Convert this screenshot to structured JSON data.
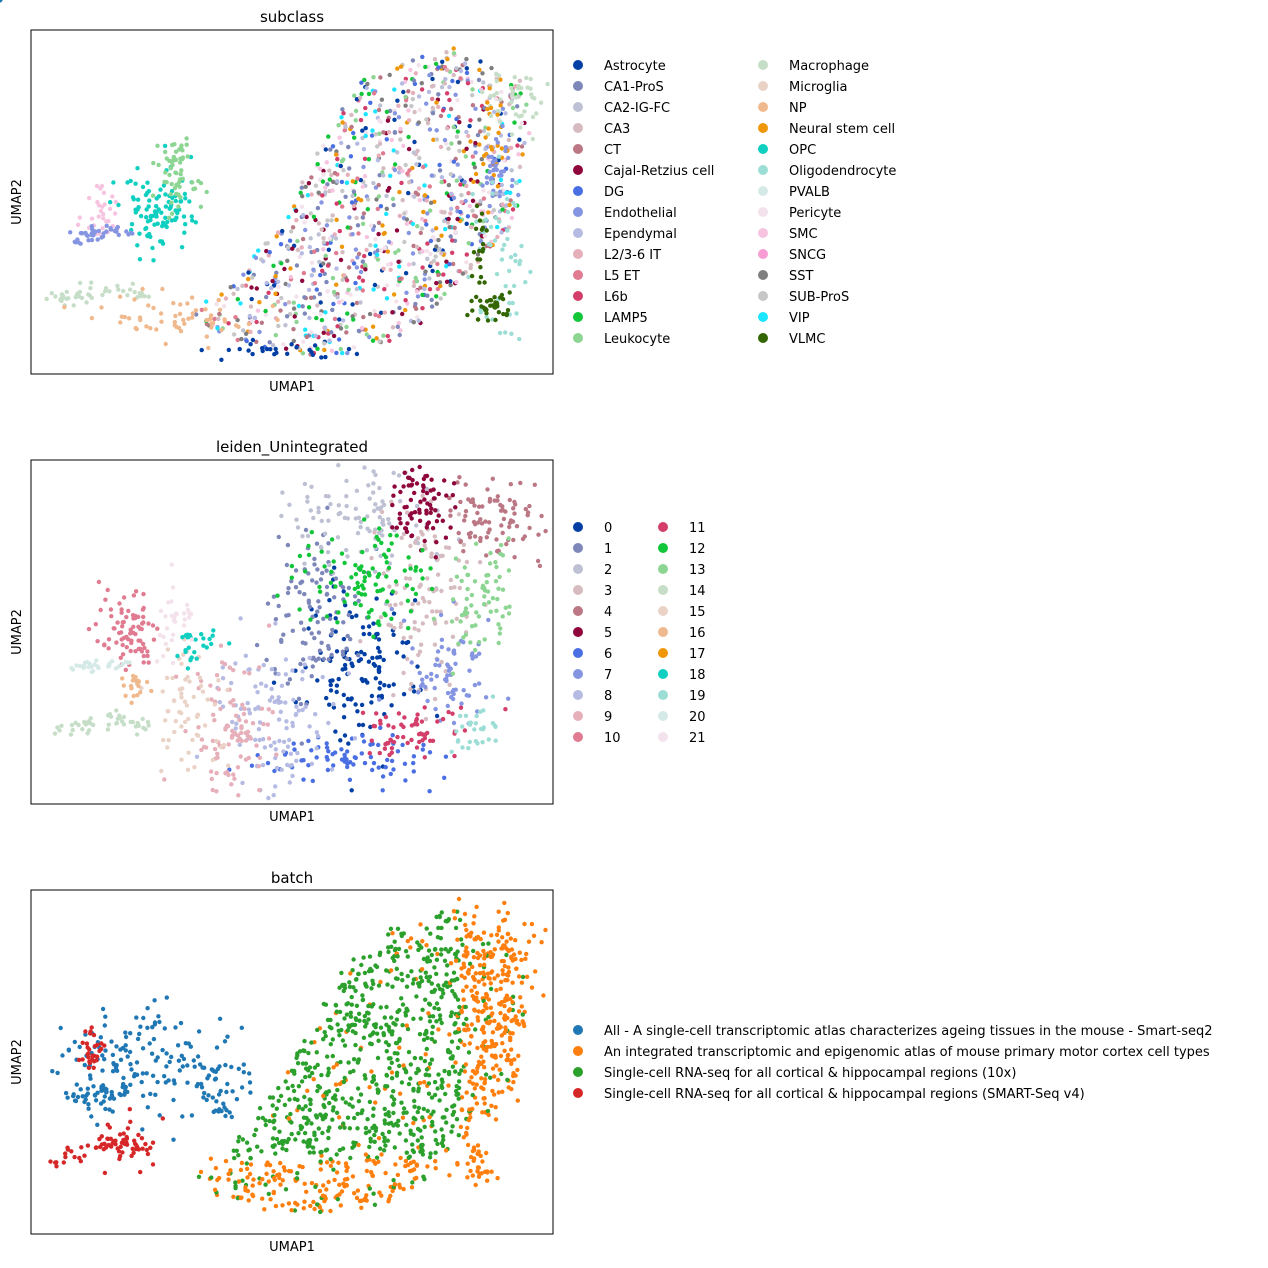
{
  "chart_data": [
    {
      "type": "scatter",
      "title": "subclass",
      "xlabel": "UMAP1",
      "ylabel": "UMAP2",
      "grid": false,
      "legend_position": "right",
      "legend_columns": 2,
      "categories": [
        {
          "label": "Astrocyte",
          "color": "#023fa5"
        },
        {
          "label": "CA1-ProS",
          "color": "#7d87b9"
        },
        {
          "label": "CA2-IG-FC",
          "color": "#bec1d4"
        },
        {
          "label": "CA3",
          "color": "#d6bcc0"
        },
        {
          "label": "CT",
          "color": "#bb7784"
        },
        {
          "label": "Cajal-Retzius cell",
          "color": "#8e063b"
        },
        {
          "label": "DG",
          "color": "#4a6fe3"
        },
        {
          "label": "Endothelial",
          "color": "#8595e1"
        },
        {
          "label": "Ependymal",
          "color": "#b5bbe3"
        },
        {
          "label": "L2/3-6 IT",
          "color": "#e6afb9"
        },
        {
          "label": "L5 ET",
          "color": "#e07b91"
        },
        {
          "label": "L6b",
          "color": "#d33f6a"
        },
        {
          "label": "LAMP5",
          "color": "#11c638"
        },
        {
          "label": "Leukocyte",
          "color": "#8dd593"
        },
        {
          "label": "Macrophage",
          "color": "#c6dec7"
        },
        {
          "label": "Microglia",
          "color": "#ead3c6"
        },
        {
          "label": "NP",
          "color": "#f0b98d"
        },
        {
          "label": "Neural stem cell",
          "color": "#ef9708"
        },
        {
          "label": "OPC",
          "color": "#0fcfc0"
        },
        {
          "label": "Oligodendrocyte",
          "color": "#9cded6"
        },
        {
          "label": "PVALB",
          "color": "#d5eae7"
        },
        {
          "label": "Pericyte",
          "color": "#f3e1eb"
        },
        {
          "label": "SMC",
          "color": "#f6c4e1"
        },
        {
          "label": "SNCG",
          "color": "#f79cd4"
        },
        {
          "label": "SST",
          "color": "#7f7f7f"
        },
        {
          "label": "SUB-ProS",
          "color": "#c7c7c7"
        },
        {
          "label": "VIP",
          "color": "#1ce6ff"
        },
        {
          "label": "VLMC",
          "color": "#336600"
        }
      ]
    },
    {
      "type": "scatter",
      "title": "leiden_Unintegrated",
      "xlabel": "UMAP1",
      "ylabel": "UMAP2",
      "grid": false,
      "legend_position": "right",
      "legend_columns": 2,
      "categories": [
        {
          "label": "0",
          "color": "#023fa5"
        },
        {
          "label": "1",
          "color": "#7d87b9"
        },
        {
          "label": "2",
          "color": "#bec1d4"
        },
        {
          "label": "3",
          "color": "#d6bcc0"
        },
        {
          "label": "4",
          "color": "#bb7784"
        },
        {
          "label": "5",
          "color": "#8e063b"
        },
        {
          "label": "6",
          "color": "#4a6fe3"
        },
        {
          "label": "7",
          "color": "#8595e1"
        },
        {
          "label": "8",
          "color": "#b5bbe3"
        },
        {
          "label": "9",
          "color": "#e6afb9"
        },
        {
          "label": "10",
          "color": "#e07b91"
        },
        {
          "label": "11",
          "color": "#d33f6a"
        },
        {
          "label": "12",
          "color": "#11c638"
        },
        {
          "label": "13",
          "color": "#8dd593"
        },
        {
          "label": "14",
          "color": "#c6dec7"
        },
        {
          "label": "15",
          "color": "#ead3c6"
        },
        {
          "label": "16",
          "color": "#f0b98d"
        },
        {
          "label": "17",
          "color": "#ef9708"
        },
        {
          "label": "18",
          "color": "#0fcfc0"
        },
        {
          "label": "19",
          "color": "#9cded6"
        },
        {
          "label": "20",
          "color": "#d5eae7"
        },
        {
          "label": "21",
          "color": "#f3e1eb"
        }
      ]
    },
    {
      "type": "scatter",
      "title": "batch",
      "xlabel": "UMAP1",
      "ylabel": "UMAP2",
      "grid": false,
      "legend_position": "right",
      "legend_columns": 1,
      "categories": [
        {
          "label": "All - A single-cell transcriptomic atlas characterizes ageing tissues in the mouse - Smart-seq2",
          "color": "#1f77b4"
        },
        {
          "label": "An integrated transcriptomic and epigenomic atlas of mouse primary motor cortex cell types",
          "color": "#ff7f0e"
        },
        {
          "label": "Single-cell RNA-seq for all cortical & hippocampal regions (10x)",
          "color": "#2ca02c"
        },
        {
          "label": "Single-cell RNA-seq for all cortical & hippocampal regions (SMART-Seq v4)",
          "color": "#d62728"
        }
      ]
    }
  ]
}
